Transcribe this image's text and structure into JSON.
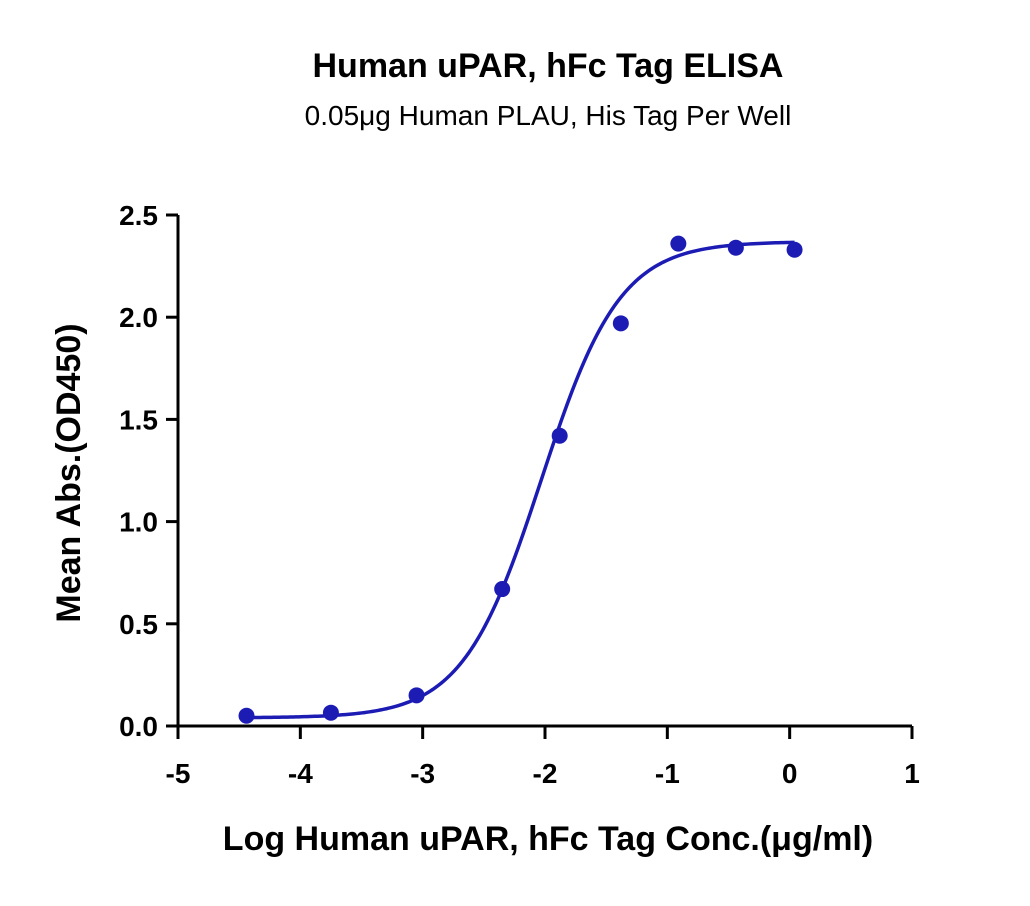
{
  "chart_data": {
    "type": "scatter",
    "title": "Human uPAR, hFc Tag ELISA",
    "subtitle": "0.05μg Human PLAU, His Tag Per Well",
    "xlabel": "Log Human uPAR, hFc Tag Conc.(μg/ml)",
    "ylabel": "Mean Abs.(OD450)",
    "xlim": [
      -5,
      1
    ],
    "ylim": [
      0,
      2.5
    ],
    "x_ticks": [
      -5,
      -4,
      -3,
      -2,
      -1,
      0,
      1
    ],
    "x_tick_labels": [
      "-5",
      "-4",
      "-3",
      "-2",
      "-1",
      "0",
      "1"
    ],
    "y_ticks": [
      0,
      0.5,
      1.0,
      1.5,
      2.0,
      2.5
    ],
    "y_tick_labels": [
      "0.0",
      "0.5",
      "1.0",
      "1.5",
      "2.0",
      "2.5"
    ],
    "grid": false,
    "legend": "none",
    "color": "#1c1cb4",
    "series": [
      {
        "points": [
          {
            "x": -4.44,
            "y": 0.05
          },
          {
            "x": -3.75,
            "y": 0.065
          },
          {
            "x": -3.05,
            "y": 0.15
          },
          {
            "x": -2.35,
            "y": 0.67
          },
          {
            "x": -1.88,
            "y": 1.42
          },
          {
            "x": -1.38,
            "y": 1.97
          },
          {
            "x": -0.91,
            "y": 2.36
          },
          {
            "x": -0.44,
            "y": 2.34
          },
          {
            "x": 0.04,
            "y": 2.33
          }
        ],
        "fit": {
          "model": "4PL",
          "bottom": 0.04,
          "top": 2.37,
          "logEC50": -2.03,
          "hill": 1.35,
          "x_range": [
            -4.44,
            0.04
          ]
        }
      }
    ]
  }
}
